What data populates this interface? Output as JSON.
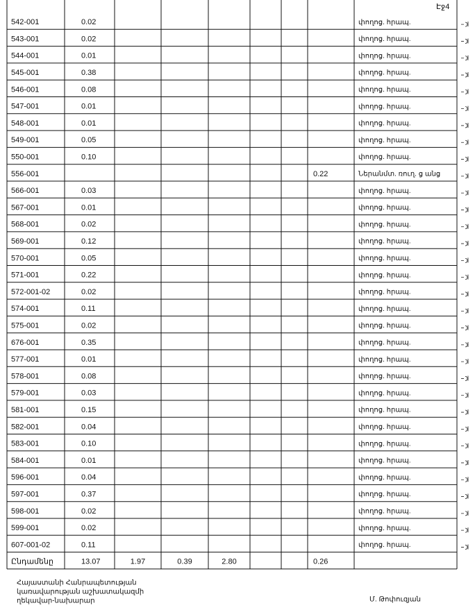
{
  "header": {
    "page": "Էջ4"
  },
  "table": {
    "rows": [
      {
        "cells": {
          "0": "542-001",
          "1": "0.02",
          "8": "փողոց. հրապ."
        }
      },
      {
        "cells": {
          "0": "543-001",
          "1": "0.02",
          "8": "փողոց. հրապ."
        }
      },
      {
        "cells": {
          "0": "544-001",
          "1": "0.01",
          "8": "փողոց. հրապ."
        }
      },
      {
        "cells": {
          "0": "545-001",
          "1": "0.38",
          "8": "փողոց. հրապ."
        }
      },
      {
        "cells": {
          "0": "546-001",
          "1": "0.08",
          "8": "փողոց. հրապ."
        }
      },
      {
        "cells": {
          "0": "547-001",
          "1": "0.01",
          "8": "փողոց. հրապ."
        }
      },
      {
        "cells": {
          "0": "548-001",
          "1": "0.01",
          "8": "փողոց. հրապ."
        }
      },
      {
        "cells": {
          "0": "549-001",
          "1": "0.05",
          "8": "փողոց. հրապ."
        }
      },
      {
        "cells": {
          "0": "550-001",
          "1": "0.10",
          "8": "փողոց. հրապ."
        }
      },
      {
        "cells": {
          "0": "556-001",
          "7": "0.22",
          "8": "Ներանմտ. ռուղ. ց անց"
        }
      },
      {
        "cells": {
          "0": "566-001",
          "1": "0.03",
          "8": "փողոց. հրապ."
        }
      },
      {
        "cells": {
          "0": "567-001",
          "1": "0.01",
          "8": "փողոց. հրապ."
        }
      },
      {
        "cells": {
          "0": "568-001",
          "1": "0.02",
          "8": "փողոց. հրապ."
        }
      },
      {
        "cells": {
          "0": "569-001",
          "1": "0.12",
          "8": "փողոց. հրապ."
        }
      },
      {
        "cells": {
          "0": "570-001",
          "1": "0.05",
          "8": "փողոց. հրապ."
        }
      },
      {
        "cells": {
          "0": "571-001",
          "1": "0.22",
          "8": "փողոց. հրապ."
        }
      },
      {
        "cells": {
          "0": "572-001-02",
          "1": "0.02",
          "8": "փողոց. հրապ."
        }
      },
      {
        "cells": {
          "0": "574-001",
          "1": "0.11",
          "8": "փողոց. հրապ."
        }
      },
      {
        "cells": {
          "0": "575-001",
          "1": "0.02",
          "8": "փողոց. հրապ."
        }
      },
      {
        "cells": {
          "0": "676-001",
          "1": "0.35",
          "8": "փողոց. հրապ."
        }
      },
      {
        "cells": {
          "0": "577-001",
          "1": "0.01",
          "8": "փողոց. հրապ."
        }
      },
      {
        "cells": {
          "0": "578-001",
          "1": "0.08",
          "8": "փողոց. հրապ."
        }
      },
      {
        "cells": {
          "0": "579-001",
          "1": "0.03",
          "8": "փողոց. հրապ."
        }
      },
      {
        "cells": {
          "0": "581-001",
          "1": "0.15",
          "8": "փողոց. հրապ."
        }
      },
      {
        "cells": {
          "0": "582-001",
          "1": "0.04",
          "8": "փողոց. հրապ."
        }
      },
      {
        "cells": {
          "0": "583-001",
          "1": "0.10",
          "8": "փողոց. հրապ."
        }
      },
      {
        "cells": {
          "0": "584-001",
          "1": "0.01",
          "8": "փողոց. հրապ."
        }
      },
      {
        "cells": {
          "0": "596-001",
          "1": "0.04",
          "8": "փողոց. հրապ."
        }
      },
      {
        "cells": {
          "0": "597-001",
          "1": "0.37",
          "8": "փողոց. հրապ."
        }
      },
      {
        "cells": {
          "0": "598-001",
          "1": "0.02",
          "8": "փողոց. հրապ."
        }
      },
      {
        "cells": {
          "0": "599-001",
          "1": "0.02",
          "8": "փողոց. հրապ."
        }
      },
      {
        "cells": {
          "0": "607-001-02",
          "1": "0.11",
          "8": "փողոց. հրապ."
        }
      },
      {
        "cells": {
          "0": "Ընդամենը",
          "1": "13.07",
          "2": "1.97",
          "3": "0.39",
          "4": "2.80",
          "7": "0.26"
        }
      }
    ]
  },
  "footer": {
    "position": [
      "Հայաստանի Հանրապետության",
      "կառավարության աշխատակազմի",
      "ղեկավար-նախարար"
    ],
    "signatory": "Մ. Թոփուզյան"
  }
}
